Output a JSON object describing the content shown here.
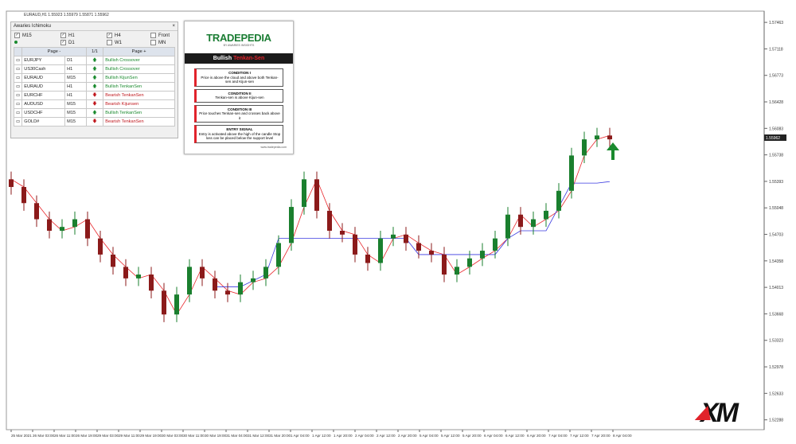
{
  "symbol_info": "EURAUD,H1  1.55923 1.55979 1.55871 1.55962",
  "chart_data": {
    "type": "candlestick",
    "open": [
      1.5542,
      1.5532,
      1.5511,
      1.549,
      1.5475,
      1.548,
      1.549,
      1.5465,
      1.5444,
      1.5428,
      1.5413,
      1.5418,
      1.5397,
      1.5366,
      1.5392,
      1.5428,
      1.5413,
      1.5397,
      1.5392,
      1.5408,
      1.5413,
      1.5428,
      1.5459,
      1.5506,
      1.5542,
      1.5501,
      1.5475,
      1.547,
      1.5444,
      1.5433,
      1.5465,
      1.547,
      1.5459,
      1.5449,
      1.5444,
      1.5418,
      1.5428,
      1.5439,
      1.5449,
      1.5465,
      1.5496,
      1.548,
      1.549,
      1.5501,
      1.5527,
      1.5573,
      1.5594,
      1.5599
    ],
    "high": [
      1.5552,
      1.5542,
      1.5521,
      1.55,
      1.549,
      1.55,
      1.55,
      1.5475,
      1.5454,
      1.5438,
      1.5428,
      1.5428,
      1.5407,
      1.5402,
      1.5438,
      1.5438,
      1.5423,
      1.5407,
      1.5418,
      1.5423,
      1.5438,
      1.5469,
      1.5516,
      1.5552,
      1.5552,
      1.5511,
      1.5485,
      1.548,
      1.5454,
      1.5475,
      1.548,
      1.548,
      1.5469,
      1.5459,
      1.5454,
      1.5438,
      1.5449,
      1.5459,
      1.5475,
      1.5506,
      1.5506,
      1.55,
      1.5511,
      1.5537,
      1.5583,
      1.5604,
      1.5609,
      1.5609
    ],
    "low": [
      1.5522,
      1.5501,
      1.548,
      1.5465,
      1.5465,
      1.547,
      1.5455,
      1.5434,
      1.5418,
      1.5403,
      1.5403,
      1.5387,
      1.5356,
      1.5356,
      1.5382,
      1.5403,
      1.5387,
      1.5382,
      1.5382,
      1.5398,
      1.5403,
      1.5418,
      1.5449,
      1.5496,
      1.5491,
      1.5465,
      1.546,
      1.5434,
      1.5423,
      1.5423,
      1.5455,
      1.5449,
      1.5439,
      1.5434,
      1.5408,
      1.5408,
      1.5418,
      1.5429,
      1.5439,
      1.5455,
      1.547,
      1.547,
      1.548,
      1.5491,
      1.5517,
      1.5563,
      1.5584,
      1.5584
    ],
    "close": [
      1.5532,
      1.5511,
      1.549,
      1.5475,
      1.548,
      1.549,
      1.5465,
      1.5444,
      1.5428,
      1.5413,
      1.5418,
      1.5397,
      1.5366,
      1.5392,
      1.5428,
      1.5413,
      1.5397,
      1.5392,
      1.5408,
      1.5413,
      1.5428,
      1.5459,
      1.5506,
      1.5542,
      1.5501,
      1.5475,
      1.547,
      1.5444,
      1.5433,
      1.5465,
      1.547,
      1.5459,
      1.5449,
      1.5444,
      1.5418,
      1.5428,
      1.5439,
      1.5449,
      1.5465,
      1.5496,
      1.548,
      1.549,
      1.5501,
      1.5527,
      1.5573,
      1.5594,
      1.5599,
      1.5594
    ],
    "up_color": "#1a7f2e",
    "down_color": "#8b1a1a",
    "lines": [
      {
        "color": "#e8262b",
        "values": [
          1.5542,
          1.5532,
          1.5511,
          1.549,
          1.5475,
          1.548,
          1.549,
          1.5465,
          1.5444,
          1.5428,
          1.5413,
          1.5418,
          1.5397,
          1.5366,
          1.5392,
          1.5428,
          1.5413,
          1.5397,
          1.5392,
          1.5408,
          1.5413,
          1.5428,
          1.5459,
          1.5506,
          1.5542,
          1.5501,
          1.5475,
          1.547,
          1.5444,
          1.5433,
          1.5465,
          1.547,
          1.5459,
          1.5449,
          1.5444,
          1.5418,
          1.5428,
          1.5439,
          1.5449,
          1.5465,
          1.5496,
          1.548,
          1.549,
          1.5501,
          1.5527,
          1.5573,
          1.5594,
          1.5599
        ]
      },
      {
        "color": "#3a3ae0",
        "values": [
          null,
          null,
          null,
          null,
          null,
          null,
          null,
          null,
          null,
          null,
          null,
          null,
          null,
          null,
          null,
          null,
          1.5402,
          1.5402,
          1.5402,
          1.541,
          1.5418,
          1.5465,
          1.5465,
          1.5465,
          1.5465,
          1.5465,
          1.5465,
          1.5465,
          1.5465,
          1.5465,
          1.5465,
          1.5465,
          1.5444,
          1.5444,
          1.5444,
          1.5444,
          1.5444,
          1.5444,
          1.5444,
          1.5465,
          1.5475,
          1.5475,
          1.5475,
          1.5506,
          1.5537,
          1.5537,
          1.5537,
          1.5539
        ]
      }
    ],
    "ylim": [
      1.5216,
      1.5763
    ],
    "yticks": [
      1.57463,
      1.57118,
      1.56773,
      1.56428,
      1.56083,
      1.55738,
      1.55393,
      1.55048,
      1.54703,
      1.54358,
      1.54013,
      1.53668,
      1.53323,
      1.52978,
      1.52633,
      1.52288
    ],
    "current_price": 1.55962,
    "x_labels": [
      "25 Mar 2021",
      "26 Mar 03:00",
      "26 Mar 11:00",
      "26 Mar 19:00",
      "29 Mar 03:00",
      "29 Mar 11:00",
      "29 Mar 19:00",
      "30 Mar 03:00",
      "30 Mar 11:00",
      "30 Mar 19:00",
      "31 Mar 04:00",
      "31 Mar 12:00",
      "31 Mar 20:00",
      "1 Apr 04:00",
      "1 Apr 12:00",
      "1 Apr 20:00",
      "2 Apr 04:00",
      "2 Apr 12:00",
      "2 Apr 20:00",
      "5 Apr 04:00",
      "5 Apr 12:00",
      "5 Apr 20:00",
      "6 Apr 04:00",
      "6 Apr 12:00",
      "6 Apr 20:00",
      "7 Apr 04:00",
      "7 Apr 12:00",
      "7 Apr 20:00",
      "8 Apr 04:00"
    ]
  },
  "panel": {
    "title": "Awaries Ichimoku",
    "close": "×",
    "checkboxes": [
      {
        "label": "M15",
        "checked": true
      },
      {
        "label": "H1",
        "checked": true
      },
      {
        "label": "H4",
        "checked": true
      },
      {
        "label": "Front",
        "checked": false
      },
      {
        "label": "D1",
        "checked": true
      },
      {
        "label": "W1",
        "checked": false
      },
      {
        "label": "MN",
        "checked": false
      }
    ],
    "header": [
      "Page -",
      "1/1",
      "Page +"
    ],
    "rows": [
      [
        "EURJPY",
        "D1",
        "up",
        "Bullish Crossover"
      ],
      [
        "US30Cash",
        "H1",
        "up",
        "Bullish Crossover"
      ],
      [
        "EURAUD",
        "M15",
        "up",
        "Bullish KijunSen"
      ],
      [
        "EURAUD",
        "H1",
        "up",
        "Bullish TenkanSen"
      ],
      [
        "EURCHF",
        "H1",
        "down",
        "Bearish TenkanSen"
      ],
      [
        "AUDUSD",
        "M15",
        "down",
        "Bearish Kijunsen"
      ],
      [
        "USDCHF",
        "M15",
        "up",
        "Bullish TenkanSen"
      ],
      [
        "GOLD#",
        "M15",
        "down",
        "Bearish TenkanSen"
      ]
    ]
  },
  "infographic": {
    "brand": "TRADEPEDIA",
    "byline": "BY AWARIES INSIGHTS",
    "title_a": "Bullish",
    "title_b": "Tenkan-Sen",
    "conditions": [
      {
        "head": "CONDITION I",
        "text": "Price is above the cloud and above both Tenkan-sen and Kijun-sen"
      },
      {
        "head": "CONDITION II",
        "text": "Tenkan-sen is above Kijun-sen"
      },
      {
        "head": "CONDITION III",
        "text": "Price touches Tenkan-sen and crosses back above it"
      },
      {
        "head": "ENTRY SIGNAL",
        "text": "Entry is activated above the high of the candle Stop loss can be placed below the support level"
      }
    ],
    "url": "www.tradepedia.com"
  },
  "logo": "XM"
}
